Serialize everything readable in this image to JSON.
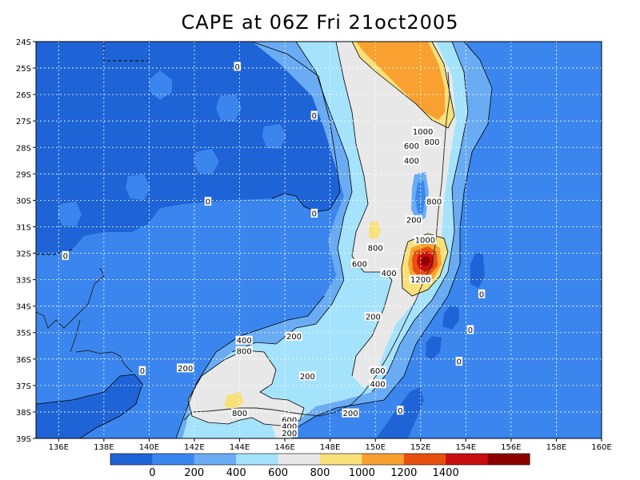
{
  "title": "CAPE at 06Z Fri 21oct2005",
  "chart_data": {
    "type": "contour-map",
    "title": "CAPE at 06Z Fri 21oct2005",
    "xlim": [
      135,
      160
    ],
    "ylim": [
      -39,
      -24
    ],
    "x_tick_labels": [
      "136E",
      "138E",
      "140E",
      "142E",
      "144E",
      "146E",
      "148E",
      "150E",
      "152E",
      "154E",
      "156E",
      "158E",
      "160E"
    ],
    "y_tick_labels": [
      "24S",
      "25S",
      "26S",
      "27S",
      "28S",
      "29S",
      "30S",
      "31S",
      "32S",
      "33S",
      "34S",
      "35S",
      "36S",
      "37S",
      "38S",
      "39S"
    ],
    "grid": true,
    "levels": [
      0,
      200,
      400,
      600,
      800,
      1000,
      1200,
      1400
    ],
    "colorbar": {
      "labels": [
        "0",
        "200",
        "400",
        "600",
        "800",
        "1000",
        "1200",
        "1400"
      ],
      "colors": [
        "#1f64d6",
        "#3b86ee",
        "#6aacf4",
        "#a5e2fc",
        "#e8e8e8",
        "#f8e07a",
        "#f8a030",
        "#e85010",
        "#c80e0e",
        "#8c0000"
      ]
    },
    "contour_labels": [
      {
        "text": "0",
        "lon": 143.9,
        "lat": -24.95
      },
      {
        "text": "0",
        "lon": 147.3,
        "lat": -26.8
      },
      {
        "text": "0",
        "lon": 142.6,
        "lat": -30.05
      },
      {
        "text": "0",
        "lon": 147.3,
        "lat": -30.5
      },
      {
        "text": "0",
        "lon": 136.3,
        "lat": -32.1
      },
      {
        "text": "0",
        "lon": 154.7,
        "lat": -33.55
      },
      {
        "text": "0",
        "lon": 154.2,
        "lat": -34.9
      },
      {
        "text": "0",
        "lon": 153.7,
        "lat": -36.1
      },
      {
        "text": "0",
        "lon": 139.7,
        "lat": -36.45
      },
      {
        "text": "0",
        "lon": 151.1,
        "lat": -37.95
      },
      {
        "text": "1000",
        "lon": 152.1,
        "lat": -27.4
      },
      {
        "text": "800",
        "lon": 152.5,
        "lat": -27.8
      },
      {
        "text": "600",
        "lon": 151.6,
        "lat": -27.95
      },
      {
        "text": "400",
        "lon": 151.6,
        "lat": -28.5
      },
      {
        "text": "800",
        "lon": 152.6,
        "lat": -30.05
      },
      {
        "text": "200",
        "lon": 151.7,
        "lat": -30.75
      },
      {
        "text": "800",
        "lon": 150.0,
        "lat": -31.8
      },
      {
        "text": "1000",
        "lon": 152.2,
        "lat": -31.5
      },
      {
        "text": "600",
        "lon": 149.3,
        "lat": -32.4
      },
      {
        "text": "400",
        "lon": 150.6,
        "lat": -32.75
      },
      {
        "text": "1200",
        "lon": 152.0,
        "lat": -33.0
      },
      {
        "text": "200",
        "lon": 149.9,
        "lat": -34.4
      },
      {
        "text": "200",
        "lon": 146.4,
        "lat": -35.15
      },
      {
        "text": "400",
        "lon": 144.2,
        "lat": -35.3
      },
      {
        "text": "800",
        "lon": 144.2,
        "lat": -35.7
      },
      {
        "text": "200",
        "lon": 141.6,
        "lat": -36.35
      },
      {
        "text": "600",
        "lon": 150.1,
        "lat": -36.45
      },
      {
        "text": "200",
        "lon": 147.0,
        "lat": -36.65
      },
      {
        "text": "400",
        "lon": 150.1,
        "lat": -36.95
      },
      {
        "text": "800",
        "lon": 144.0,
        "lat": -38.05
      },
      {
        "text": "200",
        "lon": 148.9,
        "lat": -38.05
      },
      {
        "text": "600",
        "lon": 146.2,
        "lat": -38.3
      },
      {
        "text": "400",
        "lon": 146.2,
        "lat": -38.55
      },
      {
        "text": "200",
        "lon": 146.2,
        "lat": -38.8
      }
    ]
  }
}
